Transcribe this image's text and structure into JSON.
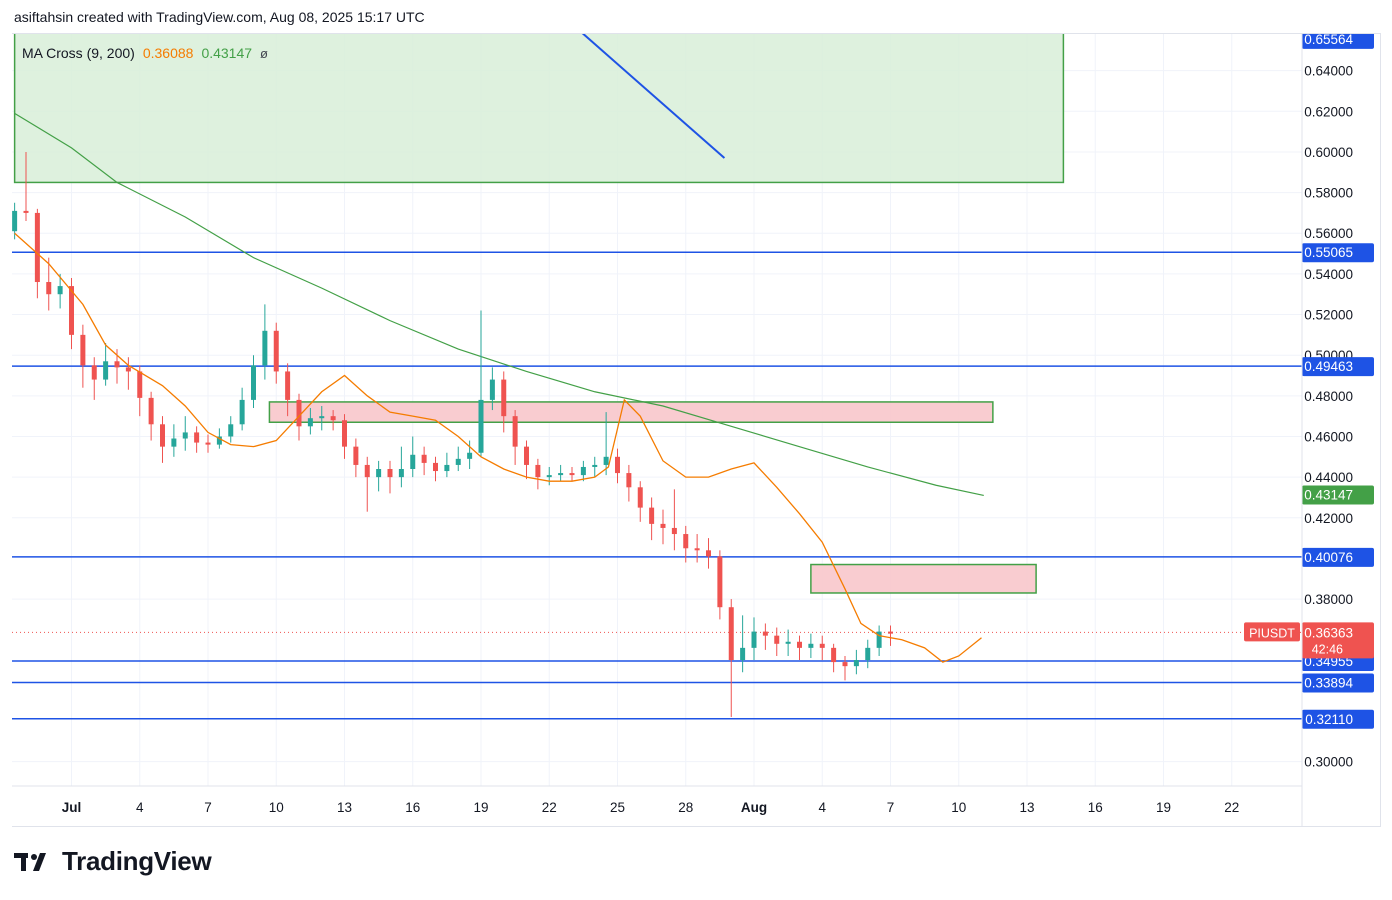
{
  "header": {
    "text": "asiftahsin created with TradingView.com, Aug 08, 2025 15:17 UTC"
  },
  "legend": {
    "name": "MA Cross (9, 200)",
    "ma_fast": "0.36088",
    "ma_slow": "0.43147",
    "symbol": "ø"
  },
  "brand": {
    "name": "TradingView",
    "logo_icon": "tradingview-logo-icon"
  },
  "colors": {
    "up": "#26a69a",
    "down": "#ef5350",
    "ma_fast": "#f57c00",
    "ma_slow": "#43a047",
    "level": "#1e53e5",
    "zone_green": "#d8efd8",
    "zone_red": "#f8c6cb",
    "zone_border": "#43a047"
  },
  "chart_data": {
    "type": "candlestick",
    "symbol": "PIUSDT",
    "ylim": [
      0.29,
      0.66
    ],
    "x_ticks": [
      "28",
      "Jul",
      "4",
      "7",
      "10",
      "13",
      "16",
      "19",
      "22",
      "25",
      "28",
      "Aug",
      "4",
      "7",
      "10",
      "13",
      "16",
      "19",
      "22"
    ],
    "y_ticks": [
      "0.64000",
      "0.62000",
      "0.60000",
      "0.58000",
      "0.56000",
      "0.54000",
      "0.52000",
      "0.50000",
      "0.48000",
      "0.46000",
      "0.44000",
      "0.42000",
      "0.38000",
      "0.30000"
    ],
    "price_labels": [
      {
        "value": 0.65564,
        "text": "0.65564",
        "color": "#1e53e5"
      },
      {
        "value": 0.55065,
        "text": "0.55065",
        "color": "#1e53e5"
      },
      {
        "value": 0.49463,
        "text": "0.49463",
        "color": "#1e53e5"
      },
      {
        "value": 0.43147,
        "text": "0.43147",
        "color": "#43a047"
      },
      {
        "value": 0.40076,
        "text": "0.40076",
        "color": "#1e53e5"
      },
      {
        "value": 0.36088,
        "text": "0.36088",
        "color": "#f57c00"
      },
      {
        "value": 0.34955,
        "text": "0.34955",
        "color": "#1e53e5"
      },
      {
        "value": 0.33894,
        "text": "0.33894",
        "color": "#1e53e5"
      },
      {
        "value": 0.3211,
        "text": "0.32110",
        "color": "#1e53e5"
      }
    ],
    "last_price": {
      "value": 0.36363,
      "text": "0.36363",
      "countdown": "42:46",
      "tag": "PIUSDT"
    },
    "horizontal_levels": [
      {
        "value": 0.55065,
        "x_from_day": -1
      },
      {
        "value": 0.49463,
        "x_from_day": -1
      },
      {
        "value": 0.40076,
        "x_from_day": -1
      },
      {
        "value": 0.34955,
        "x_from_day": 26.9
      },
      {
        "value": 0.33894,
        "x_from_day": 34.3
      },
      {
        "value": 0.3211,
        "x_from_day": 31.8
      }
    ],
    "zones": [
      {
        "kind": "green",
        "x_from": -0.5,
        "x_to": 45.6,
        "y_from": 0.585,
        "y_to": 0.66
      },
      {
        "kind": "red",
        "x_from": 10.7,
        "x_to": 42.5,
        "y_from": 0.467,
        "y_to": 0.477
      },
      {
        "kind": "red",
        "x_from": 34.5,
        "x_to": 44.4,
        "y_from": 0.383,
        "y_to": 0.397
      }
    ],
    "trendline": {
      "x1": 24.3,
      "y1": 0.66,
      "x2": 30.7,
      "y2": 0.597
    },
    "ma200": [
      [
        -0.5,
        0.619
      ],
      [
        2,
        0.602
      ],
      [
        4,
        0.585
      ],
      [
        7,
        0.568
      ],
      [
        10,
        0.548
      ],
      [
        13,
        0.533
      ],
      [
        16,
        0.517
      ],
      [
        19,
        0.503
      ],
      [
        22,
        0.492
      ],
      [
        25,
        0.482
      ],
      [
        28,
        0.475
      ],
      [
        31,
        0.465
      ],
      [
        34,
        0.455
      ],
      [
        37,
        0.445
      ],
      [
        40,
        0.436
      ],
      [
        42.1,
        0.431
      ]
    ],
    "ma9": [
      [
        -0.5,
        0.56
      ],
      [
        1,
        0.545
      ],
      [
        2.5,
        0.525
      ],
      [
        3.5,
        0.505
      ],
      [
        4.5,
        0.495
      ],
      [
        6,
        0.485
      ],
      [
        7,
        0.475
      ],
      [
        8,
        0.462
      ],
      [
        9,
        0.456
      ],
      [
        10,
        0.455
      ],
      [
        11,
        0.458
      ],
      [
        12,
        0.47
      ],
      [
        13,
        0.482
      ],
      [
        14,
        0.49
      ],
      [
        15,
        0.48
      ],
      [
        16,
        0.472
      ],
      [
        17,
        0.47
      ],
      [
        18,
        0.468
      ],
      [
        19,
        0.46
      ],
      [
        20,
        0.45
      ],
      [
        21,
        0.444
      ],
      [
        22,
        0.44
      ],
      [
        23,
        0.438
      ],
      [
        24,
        0.438
      ],
      [
        25,
        0.44
      ],
      [
        25.6,
        0.445
      ],
      [
        26.3,
        0.478
      ],
      [
        27,
        0.47
      ],
      [
        28,
        0.448
      ],
      [
        29,
        0.44
      ],
      [
        30,
        0.44
      ],
      [
        31,
        0.444
      ],
      [
        32,
        0.447
      ],
      [
        33,
        0.435
      ],
      [
        34,
        0.422
      ],
      [
        35,
        0.408
      ],
      [
        36,
        0.385
      ],
      [
        36.7,
        0.368
      ],
      [
        37.5,
        0.362
      ],
      [
        38.5,
        0.36
      ],
      [
        39.5,
        0.356
      ],
      [
        40.3,
        0.349
      ],
      [
        41,
        0.352
      ],
      [
        42,
        0.361
      ]
    ],
    "candles": [
      [
        -0.5,
        0.561,
        0.571,
        0.557,
        0.575
      ],
      [
        0,
        0.571,
        0.57,
        0.566,
        0.6
      ],
      [
        0.5,
        0.57,
        0.536,
        0.528,
        0.572
      ],
      [
        1,
        0.536,
        0.53,
        0.522,
        0.548
      ],
      [
        1.5,
        0.53,
        0.534,
        0.523,
        0.54
      ],
      [
        2,
        0.534,
        0.51,
        0.503,
        0.538
      ],
      [
        2.5,
        0.51,
        0.495,
        0.484,
        0.515
      ],
      [
        3,
        0.495,
        0.488,
        0.478,
        0.499
      ],
      [
        3.5,
        0.488,
        0.497,
        0.485,
        0.506
      ],
      [
        4,
        0.497,
        0.494,
        0.486,
        0.503
      ],
      [
        4.5,
        0.494,
        0.492,
        0.483,
        0.499
      ],
      [
        5,
        0.492,
        0.479,
        0.47,
        0.495
      ],
      [
        5.5,
        0.479,
        0.466,
        0.458,
        0.482
      ],
      [
        6,
        0.466,
        0.455,
        0.447,
        0.47
      ],
      [
        6.5,
        0.455,
        0.459,
        0.45,
        0.466
      ],
      [
        7,
        0.459,
        0.462,
        0.453,
        0.47
      ],
      [
        7.5,
        0.462,
        0.457,
        0.452,
        0.465
      ],
      [
        8,
        0.457,
        0.456,
        0.452,
        0.461
      ],
      [
        8.5,
        0.456,
        0.46,
        0.454,
        0.464
      ],
      [
        9,
        0.46,
        0.466,
        0.457,
        0.47
      ],
      [
        9.5,
        0.466,
        0.478,
        0.463,
        0.484
      ],
      [
        10,
        0.478,
        0.495,
        0.474,
        0.5
      ],
      [
        10.5,
        0.495,
        0.512,
        0.488,
        0.525
      ],
      [
        11,
        0.512,
        0.492,
        0.486,
        0.516
      ],
      [
        11.5,
        0.492,
        0.478,
        0.47,
        0.496
      ],
      [
        12,
        0.478,
        0.465,
        0.458,
        0.481
      ],
      [
        12.5,
        0.465,
        0.469,
        0.461,
        0.474
      ],
      [
        13,
        0.469,
        0.47,
        0.463,
        0.475
      ],
      [
        13.5,
        0.47,
        0.468,
        0.463,
        0.473
      ],
      [
        14,
        0.468,
        0.455,
        0.449,
        0.471
      ],
      [
        14.5,
        0.455,
        0.446,
        0.44,
        0.459
      ],
      [
        15,
        0.446,
        0.44,
        0.423,
        0.45
      ],
      [
        15.5,
        0.44,
        0.444,
        0.433,
        0.448
      ],
      [
        16,
        0.444,
        0.44,
        0.432,
        0.448
      ],
      [
        16.5,
        0.44,
        0.444,
        0.435,
        0.455
      ],
      [
        17,
        0.444,
        0.451,
        0.44,
        0.46
      ],
      [
        17.5,
        0.451,
        0.447,
        0.441,
        0.455
      ],
      [
        18,
        0.447,
        0.443,
        0.438,
        0.45
      ],
      [
        18.5,
        0.443,
        0.446,
        0.44,
        0.452
      ],
      [
        19,
        0.446,
        0.449,
        0.443,
        0.455
      ],
      [
        19.5,
        0.449,
        0.452,
        0.444,
        0.458
      ],
      [
        20,
        0.452,
        0.478,
        0.45,
        0.522
      ],
      [
        20.5,
        0.478,
        0.488,
        0.473,
        0.494
      ],
      [
        21,
        0.488,
        0.47,
        0.462,
        0.492
      ],
      [
        21.5,
        0.47,
        0.455,
        0.446,
        0.473
      ],
      [
        22,
        0.455,
        0.446,
        0.439,
        0.458
      ],
      [
        22.5,
        0.446,
        0.44,
        0.434,
        0.449
      ],
      [
        23,
        0.44,
        0.441,
        0.436,
        0.445
      ],
      [
        23.5,
        0.441,
        0.442,
        0.438,
        0.446
      ],
      [
        24,
        0.442,
        0.441,
        0.438,
        0.445
      ],
      [
        24.5,
        0.441,
        0.445,
        0.438,
        0.448
      ],
      [
        25,
        0.445,
        0.446,
        0.44,
        0.45
      ],
      [
        25.5,
        0.446,
        0.45,
        0.441,
        0.472
      ],
      [
        26,
        0.45,
        0.442,
        0.437,
        0.454
      ],
      [
        26.5,
        0.442,
        0.435,
        0.428,
        0.446
      ],
      [
        27,
        0.435,
        0.425,
        0.418,
        0.438
      ],
      [
        27.5,
        0.425,
        0.417,
        0.409,
        0.43
      ],
      [
        28,
        0.417,
        0.415,
        0.407,
        0.424
      ],
      [
        28.5,
        0.415,
        0.412,
        0.404,
        0.434
      ],
      [
        29,
        0.412,
        0.405,
        0.398,
        0.416
      ],
      [
        29.5,
        0.405,
        0.404,
        0.398,
        0.412
      ],
      [
        30,
        0.404,
        0.401,
        0.395,
        0.41
      ],
      [
        30.5,
        0.401,
        0.376,
        0.37,
        0.404
      ],
      [
        31,
        0.376,
        0.35,
        0.322,
        0.38
      ],
      [
        31.5,
        0.35,
        0.356,
        0.344,
        0.372
      ],
      [
        32,
        0.356,
        0.364,
        0.35,
        0.371
      ],
      [
        32.5,
        0.364,
        0.362,
        0.355,
        0.368
      ],
      [
        33,
        0.362,
        0.358,
        0.352,
        0.366
      ],
      [
        33.5,
        0.358,
        0.359,
        0.352,
        0.365
      ],
      [
        34,
        0.359,
        0.356,
        0.35,
        0.362
      ],
      [
        34.5,
        0.356,
        0.358,
        0.351,
        0.363
      ],
      [
        35,
        0.358,
        0.356,
        0.35,
        0.362
      ],
      [
        35.5,
        0.356,
        0.349,
        0.344,
        0.358
      ],
      [
        36,
        0.349,
        0.347,
        0.34,
        0.352
      ],
      [
        36.5,
        0.347,
        0.35,
        0.343,
        0.355
      ],
      [
        37,
        0.35,
        0.356,
        0.346,
        0.36
      ],
      [
        37.5,
        0.356,
        0.364,
        0.352,
        0.367
      ],
      [
        38,
        0.364,
        0.363,
        0.357,
        0.367
      ]
    ]
  }
}
